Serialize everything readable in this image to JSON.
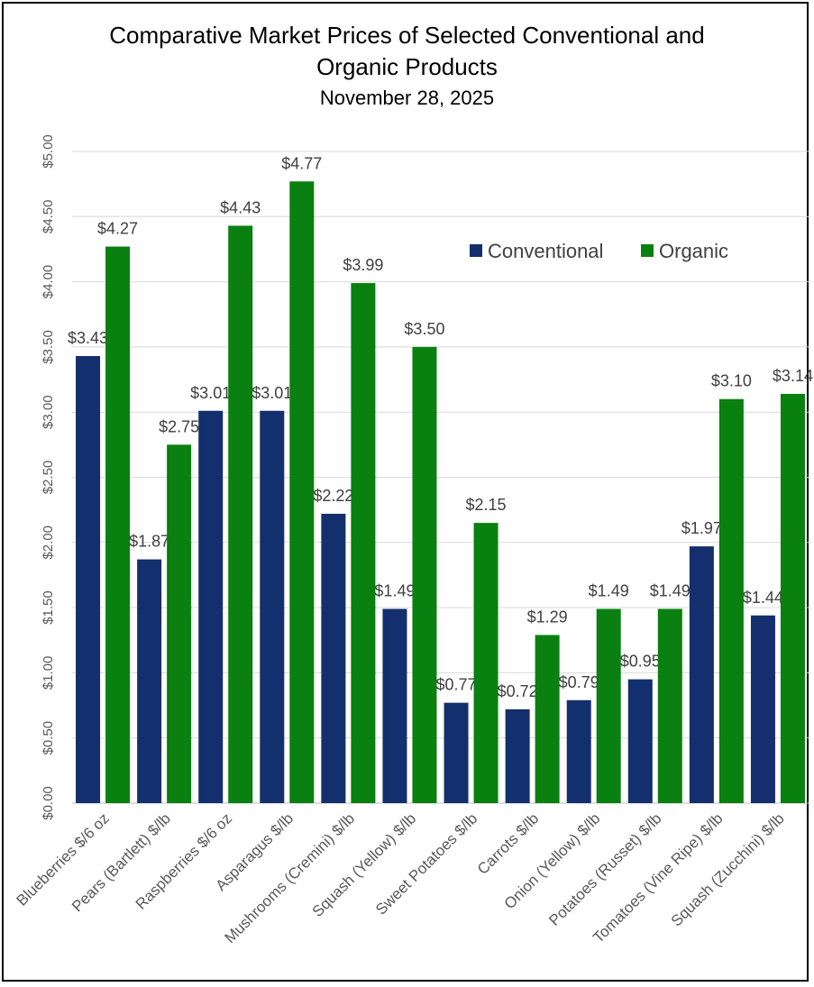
{
  "chart_data": {
    "type": "bar",
    "title_line1": "Comparative Market Prices of Selected Conventional and",
    "title_line2": "Organic Products",
    "subtitle": "November 28, 2025",
    "categories": [
      "Blueberries $/6 oz",
      "Pears (Bartlett) $/lb",
      "Raspberries $/6 oz",
      "Asparagus $/lb",
      "Mushrooms (Cremini) $/lb",
      "Squash (Yellow) $/lb",
      "Sweet Potatoes $/lb",
      "Carrots $/lb",
      "Onion (Yellow) $/lb",
      "Potatoes (Russet) $/lb",
      "Tomatoes (Vine Ripe) $/lb",
      "Squash (Zucchini) $/lb"
    ],
    "series": [
      {
        "name": "Conventional",
        "color": "#132F6D",
        "values": [
          3.43,
          1.87,
          3.01,
          3.01,
          2.22,
          1.49,
          0.77,
          0.72,
          0.79,
          0.95,
          1.97,
          1.44
        ],
        "labels": [
          "$3.43",
          "$1.87",
          "$3.01",
          "$3.01",
          "$2.22",
          "$1.49",
          "$0.77",
          "$0.72",
          "$0.79",
          "$0.95",
          "$1.97",
          "$1.44"
        ]
      },
      {
        "name": "Organic",
        "color": "#09800F",
        "values": [
          4.27,
          2.75,
          4.43,
          4.77,
          3.99,
          3.5,
          2.15,
          1.29,
          1.49,
          1.49,
          3.1,
          3.14
        ],
        "labels": [
          "$4.27",
          "$2.75",
          "$4.43",
          "$4.77",
          "$3.99",
          "$3.50",
          "$2.15",
          "$1.29",
          "$1.49",
          "$1.49",
          "$3.10",
          "$3.14"
        ]
      }
    ],
    "ylim": [
      0,
      5
    ],
    "y_ticks": [
      0,
      0.5,
      1,
      1.5,
      2,
      2.5,
      3,
      3.5,
      4,
      4.5,
      5
    ],
    "y_tick_labels": [
      "$0.00",
      "$0.50",
      "$1.00",
      "$1.50",
      "$2.00",
      "$2.50",
      "$3.00",
      "$3.50",
      "$4.00",
      "$4.50",
      "$5.00"
    ],
    "grid": true,
    "legend_position": "top-right",
    "xlabel": "",
    "ylabel": ""
  }
}
